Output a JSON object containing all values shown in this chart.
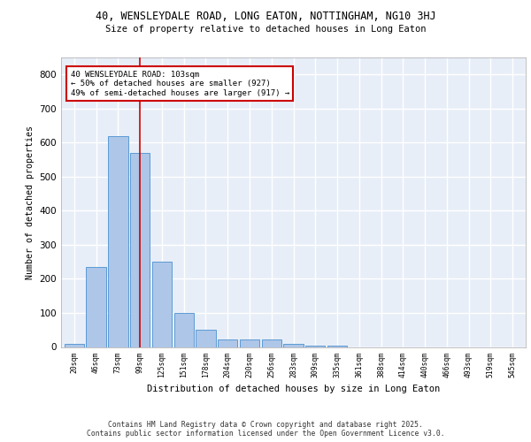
{
  "title_line1": "40, WENSLEYDALE ROAD, LONG EATON, NOTTINGHAM, NG10 3HJ",
  "title_line2": "Size of property relative to detached houses in Long Eaton",
  "xlabel": "Distribution of detached houses by size in Long Eaton",
  "ylabel": "Number of detached properties",
  "categories": [
    "20sqm",
    "46sqm",
    "73sqm",
    "99sqm",
    "125sqm",
    "151sqm",
    "178sqm",
    "204sqm",
    "230sqm",
    "256sqm",
    "283sqm",
    "309sqm",
    "335sqm",
    "361sqm",
    "388sqm",
    "414sqm",
    "440sqm",
    "466sqm",
    "493sqm",
    "519sqm",
    "545sqm"
  ],
  "values": [
    10,
    235,
    620,
    570,
    250,
    100,
    50,
    22,
    22,
    22,
    10,
    5,
    5,
    0,
    0,
    0,
    0,
    0,
    0,
    0,
    0
  ],
  "bar_color": "#aec6e8",
  "bar_edge_color": "#5b9bd5",
  "vline_x": 3,
  "vline_color": "#cc0000",
  "annotation_text": "40 WENSLEYDALE ROAD: 103sqm\n← 50% of detached houses are smaller (927)\n49% of semi-detached houses are larger (917) →",
  "annotation_box_color": "#ffffff",
  "annotation_border_color": "#cc0000",
  "ylim": [
    0,
    850
  ],
  "yticks": [
    0,
    100,
    200,
    300,
    400,
    500,
    600,
    700,
    800
  ],
  "background_color": "#e8eef8",
  "grid_color": "#ffffff",
  "footer_line1": "Contains HM Land Registry data © Crown copyright and database right 2025.",
  "footer_line2": "Contains public sector information licensed under the Open Government Licence v3.0."
}
